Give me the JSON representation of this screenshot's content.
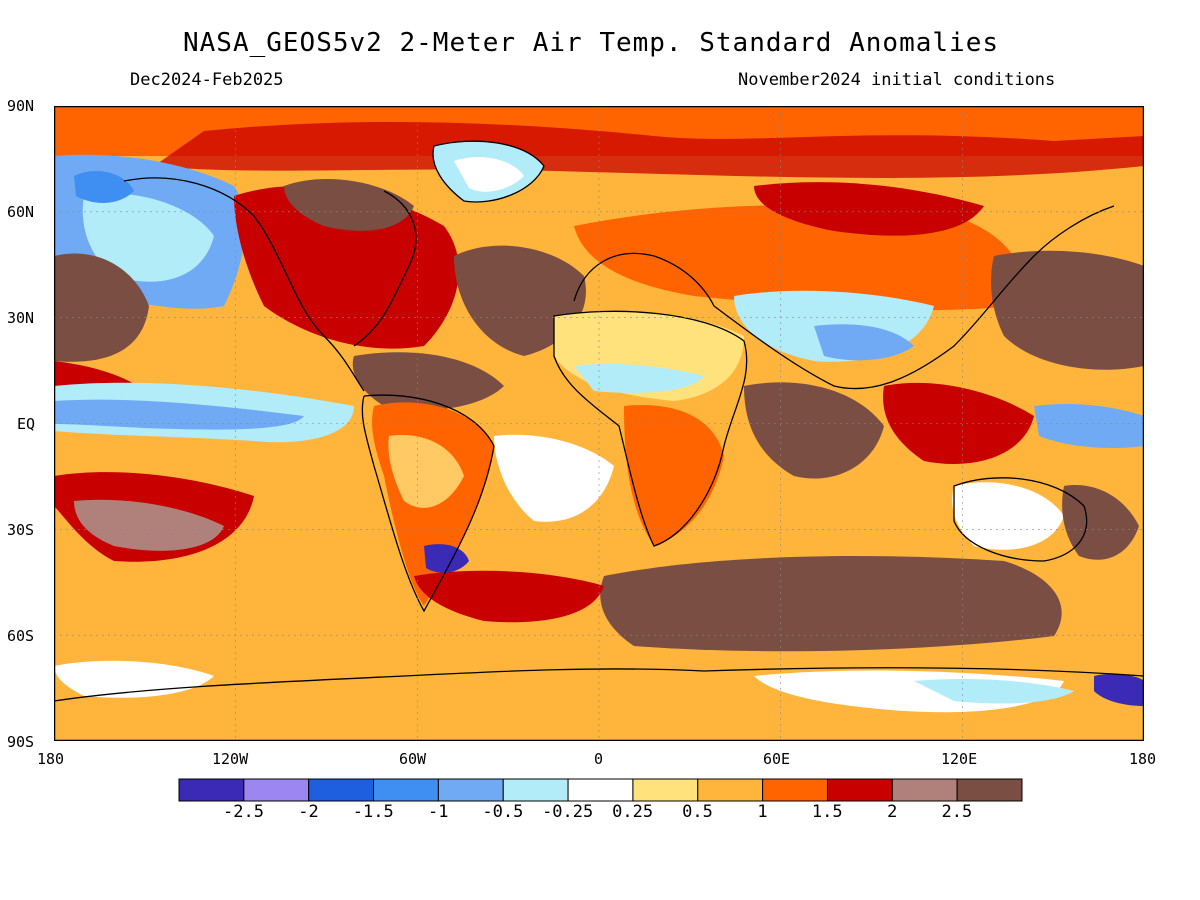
{
  "title": "NASA_GEOS5v2 2-Meter Air Temp. Standard Anomalies",
  "period": "Dec2024-Feb2025",
  "initial_conditions": "November2024 initial conditions",
  "lat_ticks": [
    "90N",
    "60N",
    "30N",
    "EQ",
    "30S",
    "60S",
    "90S"
  ],
  "lon_ticks": [
    "180",
    "120W",
    "60W",
    "0",
    "60E",
    "120E",
    "180"
  ],
  "colorbar": {
    "labels": [
      "-2.5",
      "-2",
      "-1.5",
      "-1",
      "-0.5",
      "-0.25",
      "0.25",
      "0.5",
      "1",
      "1.5",
      "2",
      "2.5"
    ],
    "colors": [
      "#3a2ab6",
      "#9c86f2",
      "#1e5fe0",
      "#3f8ef2",
      "#70aaf4",
      "#b2ecf8",
      "#ffffff",
      "#ffe27c",
      "#ffb43c",
      "#ff6400",
      "#c80000",
      "#b0807a",
      "#7a4e42"
    ]
  },
  "colors": {
    "warm_base": "#ffb43c",
    "warm_strong": "#ff6400",
    "hot": "#c80000",
    "very_hot": "#7a4e42",
    "cool": "#b2ecf8",
    "cold": "#70aaf4"
  }
}
